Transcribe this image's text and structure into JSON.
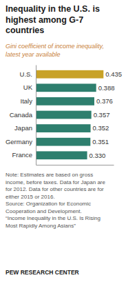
{
  "chart_data": {
    "type": "bar",
    "orientation": "horizontal",
    "title": "Inequality in the U.S. is\nhighest among G-7\ncountries",
    "subtitle": "Gini coefficient of income inequality,\nlatest year available",
    "categories": [
      "U.S.",
      "UK",
      "Italy",
      "Canada",
      "Japan",
      "Germany",
      "France"
    ],
    "values": [
      0.435,
      0.388,
      0.376,
      0.357,
      0.352,
      0.351,
      0.33
    ],
    "value_labels": [
      "0.435",
      "0.388",
      "0.376",
      "0.357",
      "0.352",
      "0.351",
      "0.330"
    ],
    "colors": [
      "#c8a227",
      "#2e7f6e",
      "#2e7f6e",
      "#2e7f6e",
      "#2e7f6e",
      "#2e7f6e",
      "#2e7f6e"
    ],
    "xlim": [
      0,
      0.5
    ],
    "data_labels": true,
    "tick_labels": "y",
    "grid": false,
    "annotations": [
      "Note: Estimates are based on gross\nincome, before taxes. Data for Japan are\nfor 2012.  Data for other countries are for\neither 2015 or 2016.\nSource: Organization for Economic\nCooperation and Development.\n“Income Inequality in the U.S. Is Rising\nMost Rapidly Among Asians”",
      "PEW RESEARCH CENTER"
    ]
  }
}
